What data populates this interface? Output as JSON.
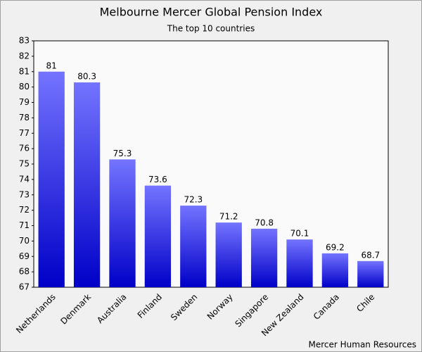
{
  "chart_data": {
    "type": "bar",
    "title": "Melbourne Mercer Global Pension Index",
    "subtitle": "The top 10 countries",
    "categories": [
      "Netherlands",
      "Denmark",
      "Australia",
      "Finland",
      "Sweden",
      "Norway",
      "Singapore",
      "New Zealand",
      "Canada",
      "Chile"
    ],
    "values": [
      81,
      80.3,
      75.3,
      73.6,
      72.3,
      71.2,
      70.8,
      70.1,
      69.2,
      68.7
    ],
    "color": "#7474ff",
    "ylim": [
      67,
      83
    ],
    "yticks": [
      67,
      68,
      69,
      70,
      71,
      72,
      73,
      74,
      75,
      76,
      77,
      78,
      79,
      80,
      81,
      82,
      83
    ],
    "grid": false,
    "source": "Mercer Human Resources"
  }
}
